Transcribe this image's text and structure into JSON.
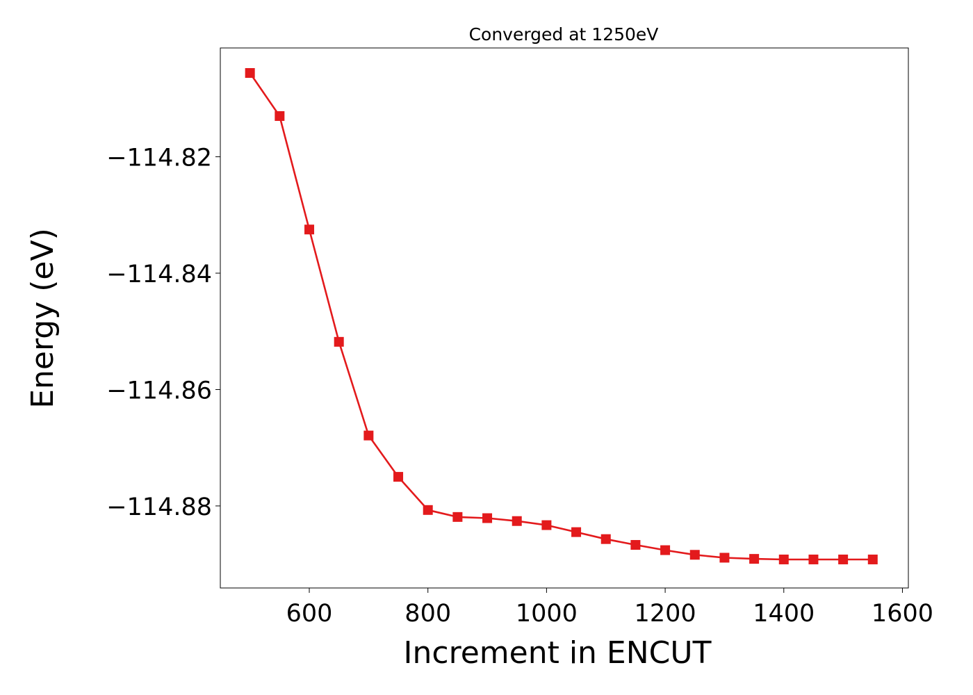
{
  "chart_data": {
    "type": "line",
    "title": "Converged at 1250eV",
    "xlabel": "Increment in ENCUT",
    "ylabel": "Energy (eV)",
    "xlim": [
      450,
      1610
    ],
    "ylim": [
      -114.8941,
      -114.8013
    ],
    "xticks": [
      600,
      800,
      1000,
      1200,
      1400,
      1600
    ],
    "xtick_labels": [
      "600",
      "800",
      "1000",
      "1200",
      "1400",
      "1600"
    ],
    "yticks": [
      -114.82,
      -114.84,
      -114.86,
      -114.88
    ],
    "ytick_labels": [
      "−114.82",
      "−114.84",
      "−114.86",
      "−114.88"
    ],
    "grid": false,
    "legend": "none",
    "series": [
      {
        "marker": "square",
        "color": "#e31a1c",
        "x": [
          500,
          550,
          600,
          650,
          700,
          750,
          800,
          850,
          900,
          950,
          1000,
          1050,
          1100,
          1150,
          1200,
          1250,
          1300,
          1350,
          1400,
          1450,
          1500,
          1550
        ],
        "y": [
          -114.8056,
          -114.813,
          -114.8325,
          -114.8518,
          -114.8679,
          -114.875,
          -114.8807,
          -114.8819,
          -114.8821,
          -114.8826,
          -114.8833,
          -114.8845,
          -114.8857,
          -114.8867,
          -114.8876,
          -114.8884,
          -114.8889,
          -114.8891,
          -114.8892,
          -114.8892,
          -114.8892,
          -114.8892
        ]
      }
    ]
  }
}
